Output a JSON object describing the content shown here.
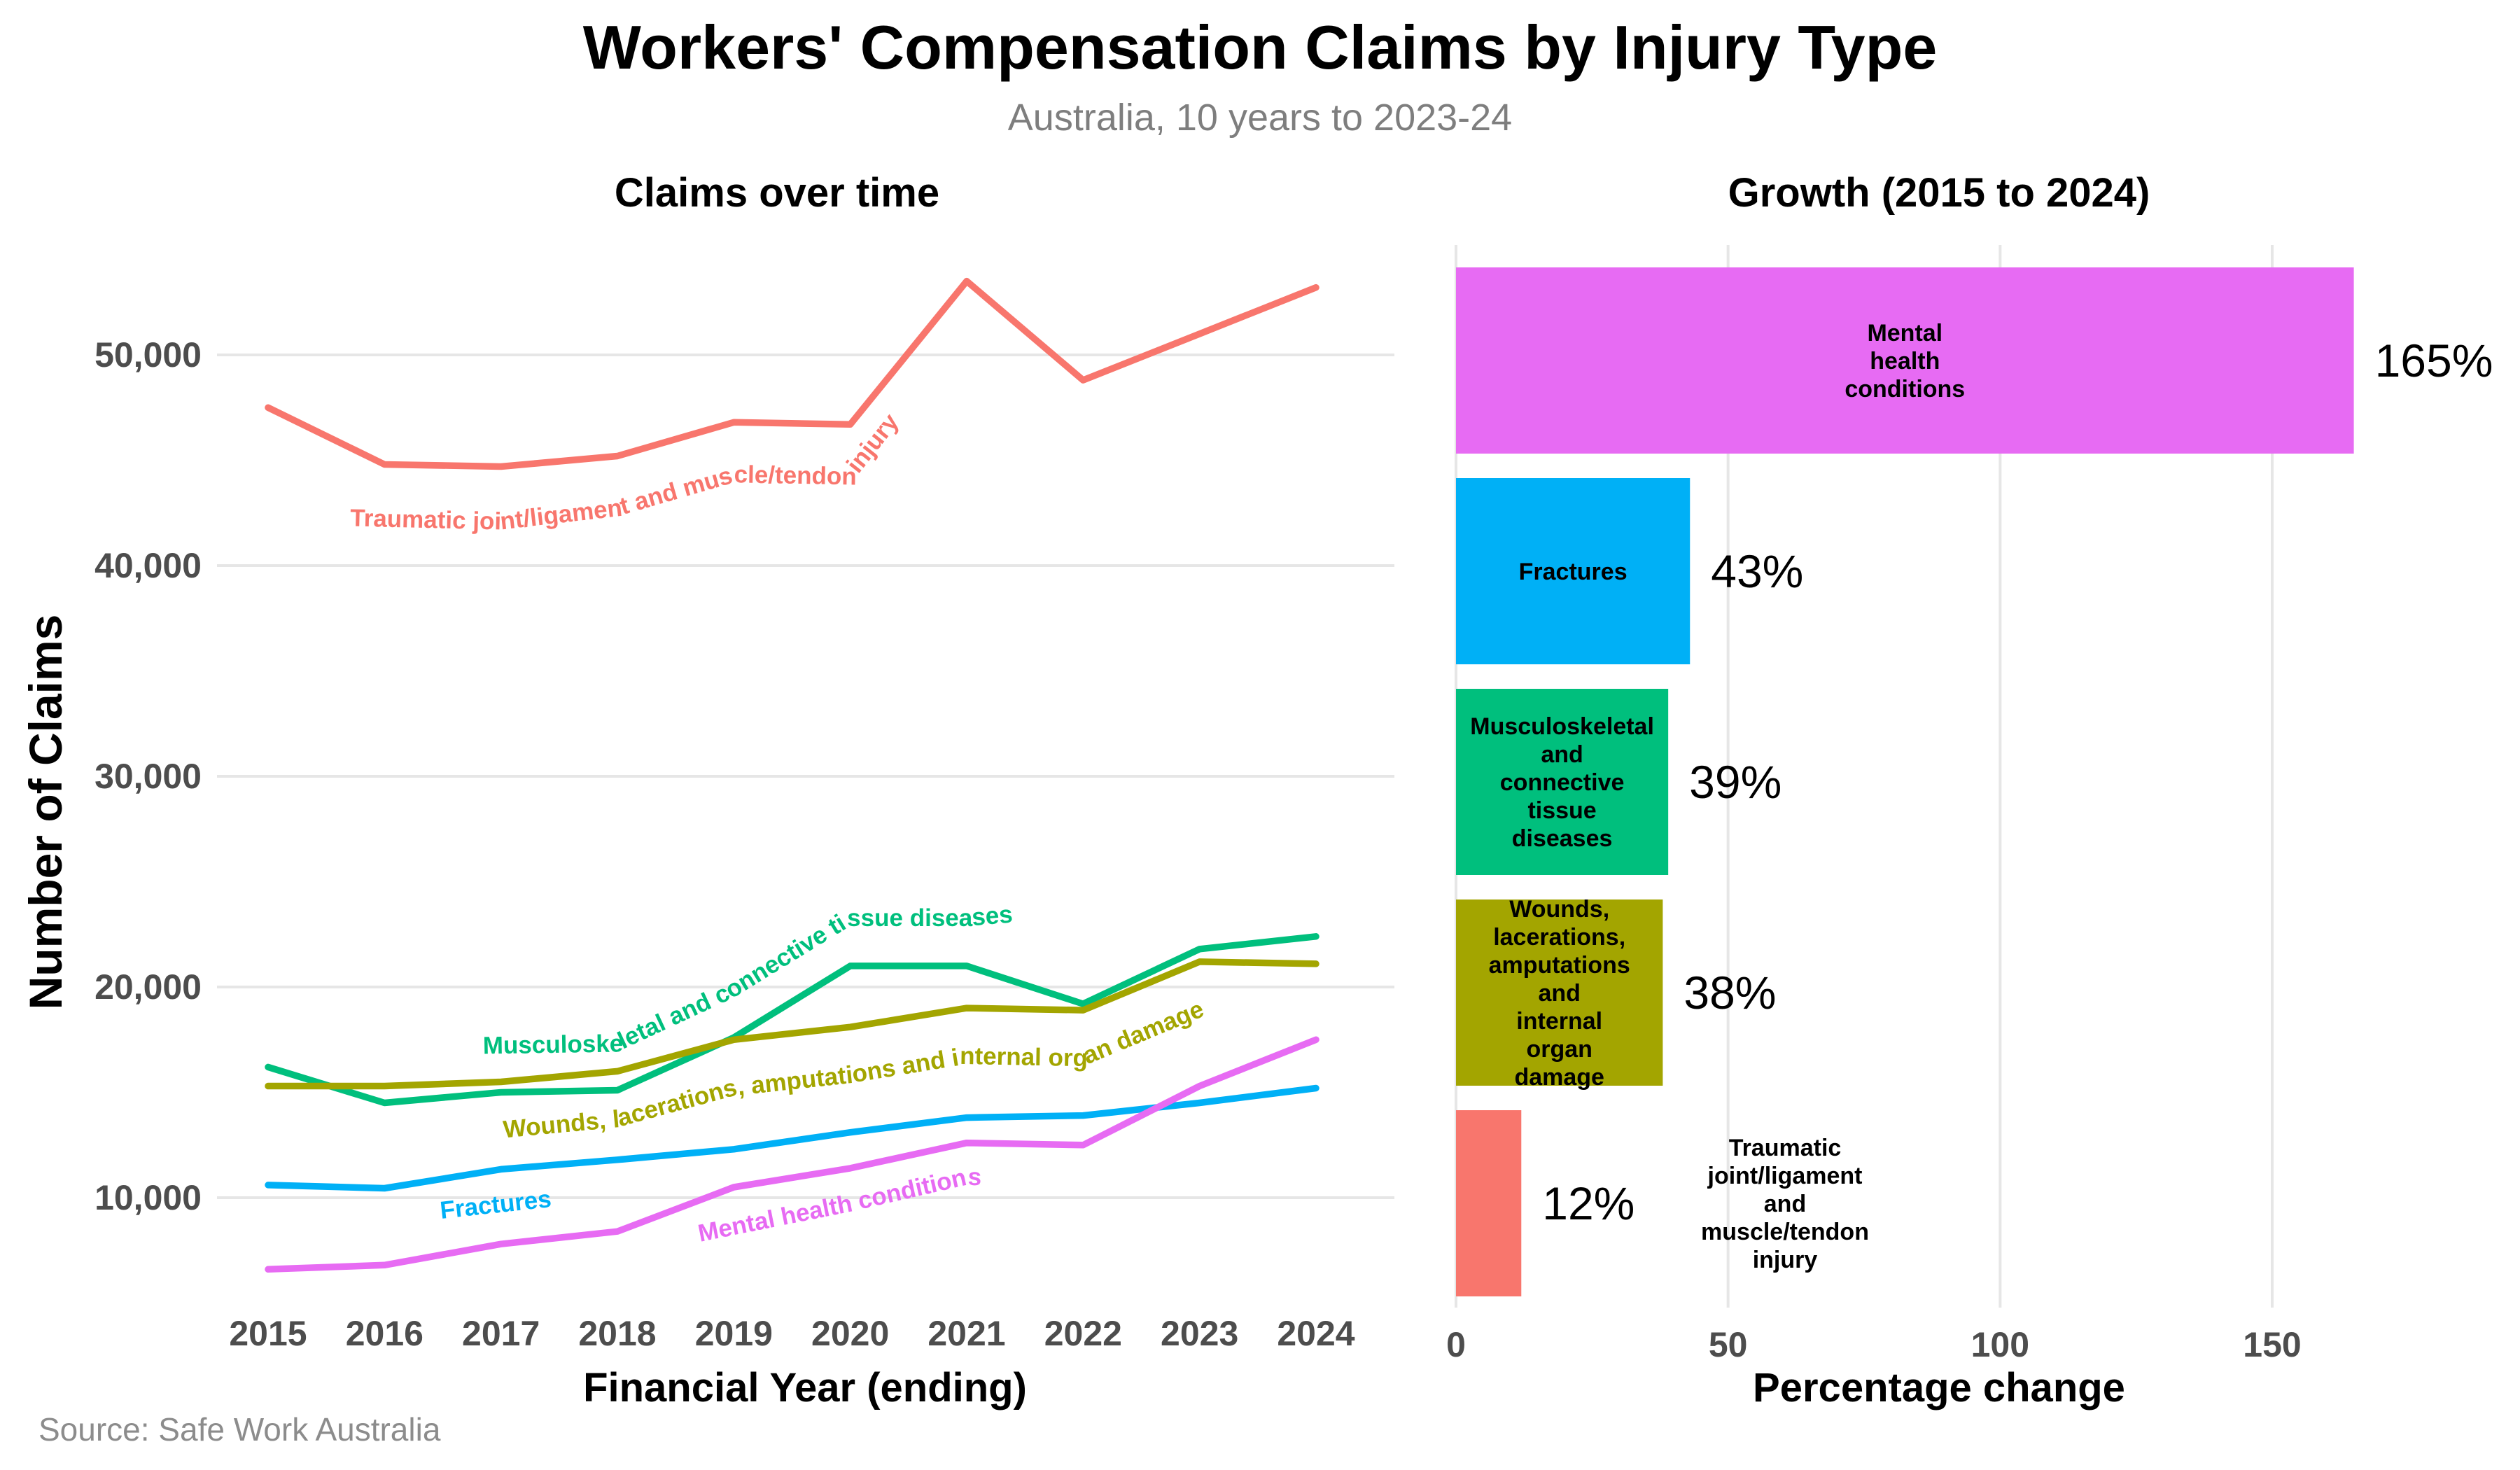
{
  "header": {
    "title": "Workers' Compensation Claims by Injury Type",
    "subtitle": "Australia, 10 years to 2023-24"
  },
  "source": "Source: Safe Work Australia",
  "chart_data": [
    {
      "type": "line",
      "title": "Claims over time",
      "xlabel": "Financial Year (ending)",
      "ylabel": "Number of Claims",
      "x": [
        2015,
        2016,
        2017,
        2018,
        2019,
        2020,
        2021,
        2022,
        2023,
        2024
      ],
      "yticks": [
        10000,
        20000,
        30000,
        40000,
        50000
      ],
      "ylim": [
        5500,
        55000
      ],
      "grid": true,
      "legend": "direct-curved-labels-on-lines",
      "series": [
        {
          "name": "Traumatic joint/ligament and muscle/tendon injury",
          "color": "#F8766D",
          "values": [
            47500,
            44800,
            44700,
            45200,
            46800,
            46700,
            53500,
            48800,
            51000,
            53200
          ]
        },
        {
          "name": "Musculoskeletal and connective tissue diseases",
          "color": "#00BF7D",
          "values": [
            16200,
            14500,
            15000,
            15100,
            17600,
            21000,
            21000,
            19200,
            21800,
            22400
          ]
        },
        {
          "name": "Wounds, lacerations, amputations and internal organ damage",
          "color": "#A3A500",
          "values": [
            15300,
            15300,
            15500,
            16000,
            17500,
            18100,
            19000,
            18900,
            21200,
            21100
          ]
        },
        {
          "name": "Fractures",
          "color": "#00B0F6",
          "values": [
            10600,
            10450,
            11350,
            11800,
            12300,
            13100,
            13800,
            13900,
            14500,
            15200
          ]
        },
        {
          "name": "Mental health conditions",
          "color": "#E76BF3",
          "values": [
            6600,
            6800,
            7800,
            8400,
            10500,
            11400,
            12600,
            12500,
            15300,
            17500
          ]
        }
      ]
    },
    {
      "type": "bar",
      "orientation": "horizontal",
      "title": "Growth (2015 to 2024)",
      "xlabel": "Percentage change",
      "xticks": [
        0,
        50,
        100,
        150
      ],
      "xlim": [
        0,
        180
      ],
      "grid": true,
      "categories": [
        "Mental health conditions",
        "Fractures",
        "Musculoskeletal and connective tissue diseases",
        "Wounds, lacerations, amputations and internal organ damage",
        "Traumatic joint/ligament and muscle/tendon injury"
      ],
      "values": [
        165,
        43,
        39,
        38,
        12
      ],
      "value_labels": [
        "165%",
        "43%",
        "39%",
        "38%",
        "12%"
      ],
      "bar_colors": [
        "#E76BF3",
        "#00B0F6",
        "#00BF7D",
        "#A3A500",
        "#F8766D"
      ],
      "label_placement": [
        "inside",
        "inside",
        "inside",
        "inside",
        "outside"
      ],
      "label_lines": [
        [
          "Mental",
          "health",
          "conditions"
        ],
        [
          "Fractures"
        ],
        [
          "Musculoskeletal",
          "and",
          "connective",
          "tissue",
          "diseases"
        ],
        [
          "Wounds,",
          "lacerations,",
          "amputations",
          "and",
          "internal",
          "organ",
          "damage"
        ],
        [
          "Traumatic",
          "joint/ligament",
          "and",
          "muscle/tendon",
          "injury"
        ]
      ]
    }
  ],
  "style": {
    "grid_color": "#e6e6e6",
    "tick_color": "#4d4d4d",
    "text_color": "#000000"
  }
}
